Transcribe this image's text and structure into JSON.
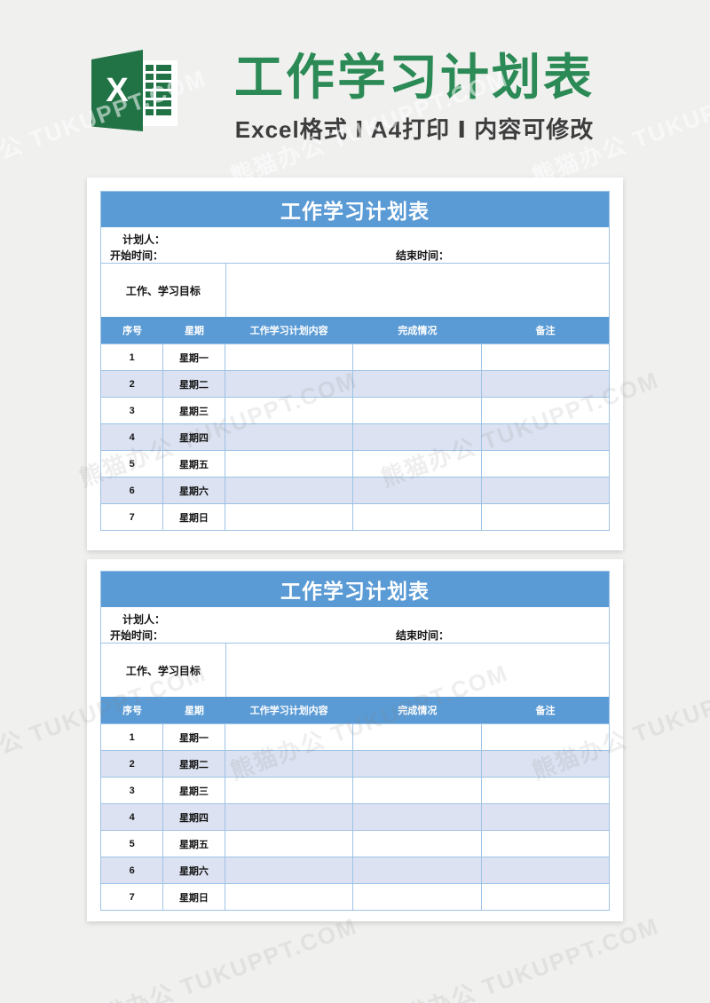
{
  "banner": {
    "title": "工作学习计划表",
    "subtitle": "Excel格式 Ⅰ A4打印 Ⅰ 内容可修改",
    "icon_letter": "X"
  },
  "watermark": {
    "text": "熊猫办公 TUKUPPT.COM"
  },
  "sheet": {
    "title": "工作学习计划表",
    "planner_label": "计划人：",
    "start_label": "开始时间：",
    "end_label": "结束时间：",
    "goal_label": "工作、学习目标",
    "columns": [
      "序号",
      "星期",
      "工作学习计划内容",
      "完成情况",
      "备注"
    ],
    "rows": [
      {
        "no": "1",
        "day": "星期一"
      },
      {
        "no": "2",
        "day": "星期二"
      },
      {
        "no": "3",
        "day": "星期三"
      },
      {
        "no": "4",
        "day": "星期四"
      },
      {
        "no": "5",
        "day": "星期五"
      },
      {
        "no": "6",
        "day": "星期六"
      },
      {
        "no": "7",
        "day": "星期日"
      }
    ]
  },
  "colors": {
    "excel_green": "#217346",
    "title_green": "#2B8A55",
    "header_blue": "#5B9BD5",
    "row_alt_blue": "#DCE2F1",
    "table_border_blue": "#9DC3E6"
  }
}
